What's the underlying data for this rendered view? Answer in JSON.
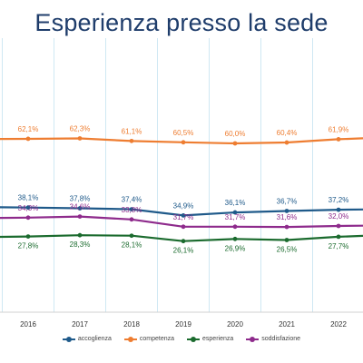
{
  "chart_data": {
    "type": "line",
    "title": "Esperienza presso la sede",
    "categories": [
      "2016",
      "2017",
      "2018",
      "2019",
      "2020",
      "2021",
      "2022"
    ],
    "series": [
      {
        "name": "accoglienza",
        "color": "#1f5a8a",
        "values": [
          38.1,
          37.8,
          37.4,
          34.9,
          36.1,
          36.7,
          37.2
        ],
        "labels": [
          "38,1%",
          "37,8%",
          "37,4%",
          "34,9%",
          "36,1%",
          "36,7%",
          "37,2%"
        ],
        "label_position": "above"
      },
      {
        "name": "competenza",
        "color": "#ee7d31",
        "values": [
          62.1,
          62.3,
          61.1,
          60.5,
          60.0,
          60.4,
          61.9
        ],
        "labels": [
          "62,1%",
          "62,3%",
          "61,1%",
          "60,5%",
          "60,0%",
          "60,4%",
          "61,9%"
        ],
        "label_position": "above"
      },
      {
        "name": "esperienza",
        "color": "#1b6b2e",
        "values": [
          27.8,
          28.3,
          28.1,
          26.1,
          26.9,
          26.5,
          27.7
        ],
        "labels": [
          "27,8%",
          "28,3%",
          "28,1%",
          "26,1%",
          "26,9%",
          "26,5%",
          "27,7%"
        ],
        "label_position": "below"
      },
      {
        "name": "soddisfazione",
        "color": "#8e2b8c",
        "values": [
          34.3,
          34.6,
          33.8,
          31.7,
          31.7,
          31.6,
          32.0
        ],
        "labels": [
          "34,3%",
          "34,6%",
          "33,8%",
          "31,7%",
          "31,7%",
          "31,6%",
          "32,0%"
        ],
        "label_position": "above"
      }
    ],
    "grid": true,
    "legend": "bottom"
  }
}
